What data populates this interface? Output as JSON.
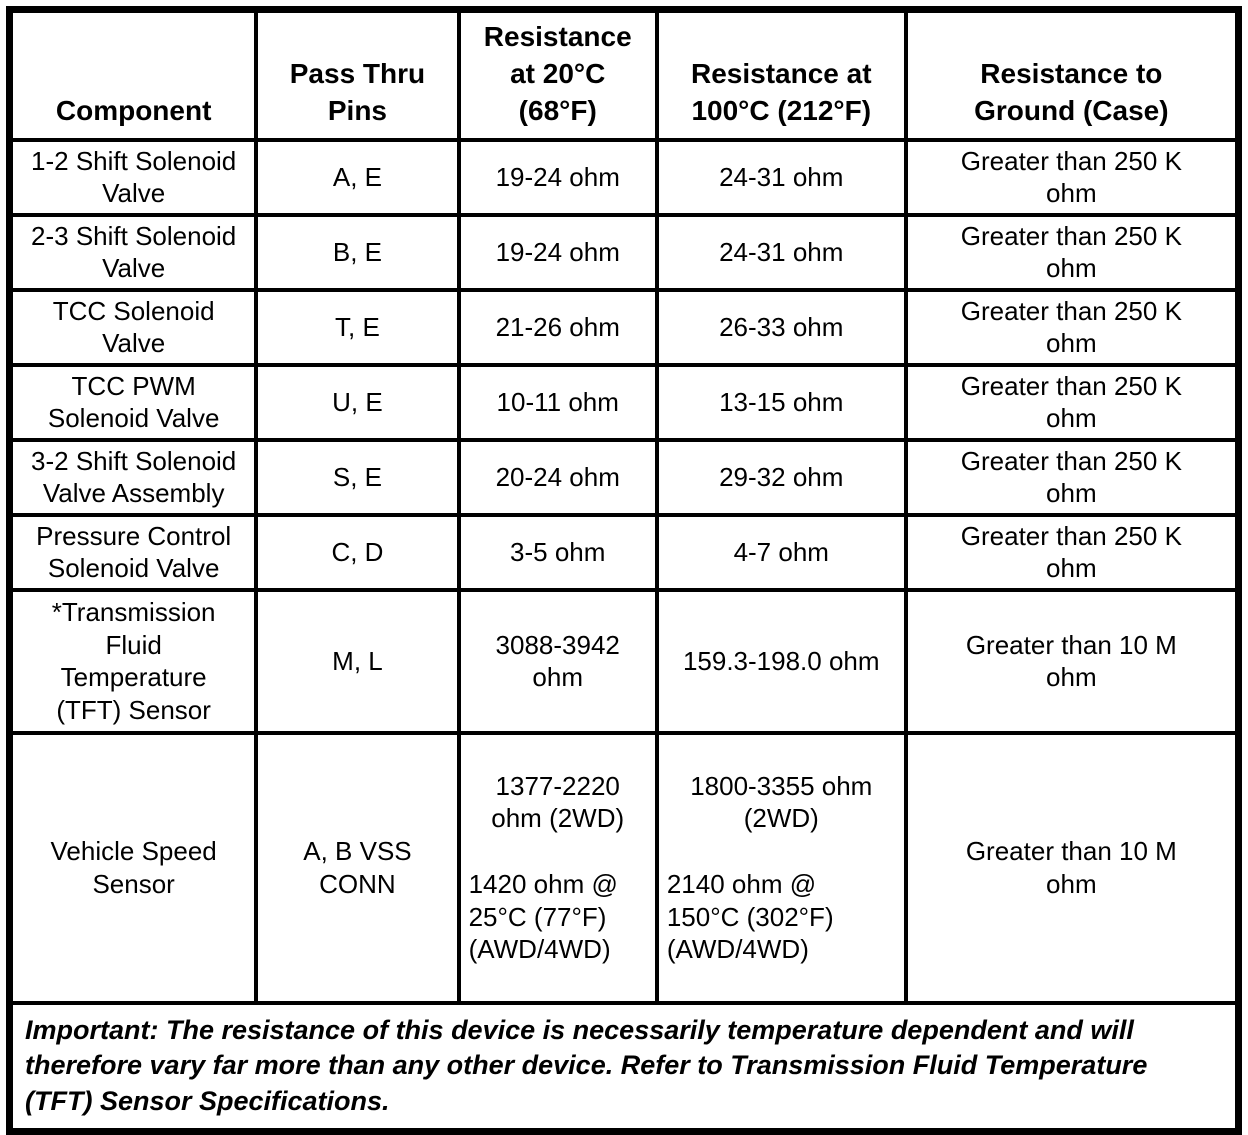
{
  "table": {
    "headers": {
      "component": "Component",
      "pins": "Pass Thru\nPins",
      "r20": "Resistance\nat 20°C\n(68°F)",
      "r100": "Resistance at\n100°C (212°F)",
      "ground": "Resistance to\nGround (Case)"
    },
    "rows": [
      {
        "component": "1-2 Shift Solenoid\nValve",
        "pins": "A, E",
        "r20": "19-24 ohm",
        "r100": "24-31 ohm",
        "ground": "Greater than 250 K\nohm"
      },
      {
        "component": "2-3 Shift Solenoid\nValve",
        "pins": "B, E",
        "r20": "19-24 ohm",
        "r100": "24-31 ohm",
        "ground": "Greater than 250 K\nohm"
      },
      {
        "component": "TCC Solenoid\nValve",
        "pins": "T, E",
        "r20": "21-26 ohm",
        "r100": "26-33 ohm",
        "ground": "Greater than 250 K\nohm"
      },
      {
        "component": "TCC PWM\nSolenoid Valve",
        "pins": "U, E",
        "r20": "10-11 ohm",
        "r100": "13-15 ohm",
        "ground": "Greater than 250 K\nohm"
      },
      {
        "component": "3-2 Shift Solenoid\nValve Assembly",
        "pins": "S, E",
        "r20": "20-24 ohm",
        "r100": "29-32 ohm",
        "ground": "Greater than 250 K\nohm"
      },
      {
        "component": "Pressure Control\nSolenoid Valve",
        "pins": "C, D",
        "r20": "3-5 ohm",
        "r100": "4-7 ohm",
        "ground": "Greater than 250 K\nohm"
      },
      {
        "component": "*Transmission\nFluid\nTemperature\n(TFT) Sensor",
        "pins": "M, L",
        "r20": "3088-3942\nohm",
        "r100": "159.3-198.0 ohm",
        "ground": "Greater than 10 M\nohm"
      },
      {
        "component": "Vehicle Speed\nSensor",
        "pins": "A, B VSS\nCONN",
        "r20_center": "1377-2220\nohm (2WD)",
        "r20_left": "1420 ohm @\n25°C (77°F)\n(AWD/4WD)",
        "r100_center": "1800-3355 ohm\n(2WD)",
        "r100_left": "2140 ohm @\n150°C (302°F)\n(AWD/4WD)",
        "ground": "Greater than 10 M\nohm"
      }
    ],
    "note": "Important: The resistance of this device is necessarily temperature dependent and will\ntherefore vary far more than any other device. Refer to Transmission Fluid Temperature\n(TFT) Sensor Specifications."
  }
}
